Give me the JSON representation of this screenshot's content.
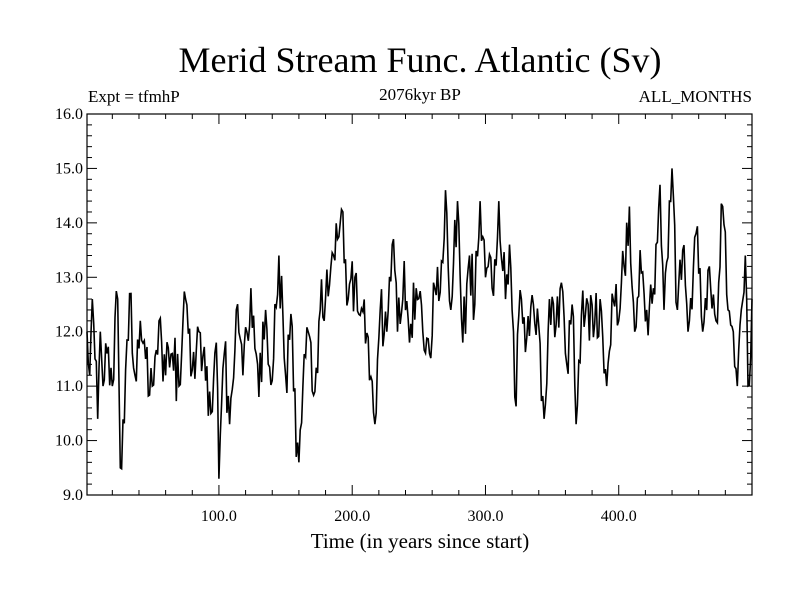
{
  "chart_data": {
    "type": "line",
    "title": "Merid Stream Func. Atlantic (Sv)",
    "subtitle": "2076kyr BP",
    "left_label": "Expt = tfmhP",
    "right_label": "ALL_MONTHS",
    "xlabel": "Time (in years since start)",
    "ylabel": "",
    "xlim": [
      1,
      500
    ],
    "ylim": [
      9.0,
      16.0
    ],
    "x_ticks": [
      100,
      200,
      300,
      400
    ],
    "x_tick_labels": [
      "100.0",
      "200.0",
      "300.0",
      "400.0"
    ],
    "y_ticks": [
      9,
      10,
      11,
      12,
      13,
      14,
      15,
      16
    ],
    "y_tick_labels": [
      "9.0",
      "10.0",
      "11.0",
      "12.0",
      "13.0",
      "14.0",
      "15.0",
      "16.0"
    ],
    "grid": false,
    "legend": "none",
    "series": [
      {
        "name": "Merid Stream Func. Atlantic",
        "color": "#000000",
        "x_start": 1,
        "x_step": 1,
        "anchors": [
          [
            1,
            12.0
          ],
          [
            3,
            11.2
          ],
          [
            5,
            12.6
          ],
          [
            7,
            11.5
          ],
          [
            9,
            10.4
          ],
          [
            11,
            12.0
          ],
          [
            13,
            11.0
          ],
          [
            16,
            11.6
          ],
          [
            20,
            11.0
          ],
          [
            24,
            12.6
          ],
          [
            26,
            9.5
          ],
          [
            30,
            11.3
          ],
          [
            33,
            12.7
          ],
          [
            37,
            11.2
          ],
          [
            41,
            12.2
          ],
          [
            45,
            11.5
          ],
          [
            50,
            11.0
          ],
          [
            55,
            12.2
          ],
          [
            60,
            11.2
          ],
          [
            65,
            11.6
          ],
          [
            70,
            11.0
          ],
          [
            75,
            12.6
          ],
          [
            80,
            11.3
          ],
          [
            85,
            12.0
          ],
          [
            90,
            11.1
          ],
          [
            94,
            10.5
          ],
          [
            98,
            11.8
          ],
          [
            100,
            9.3
          ],
          [
            104,
            11.6
          ],
          [
            108,
            10.3
          ],
          [
            113,
            12.4
          ],
          [
            118,
            11.2
          ],
          [
            124,
            12.8
          ],
          [
            130,
            10.8
          ],
          [
            135,
            12.4
          ],
          [
            140,
            11.1
          ],
          [
            145,
            13.4
          ],
          [
            150,
            11.2
          ],
          [
            155,
            12.1
          ],
          [
            158,
            9.7
          ],
          [
            160,
            9.6
          ],
          [
            163,
            11.0
          ],
          [
            167,
            12.0
          ],
          [
            172,
            10.9
          ],
          [
            176,
            12.4
          ],
          [
            180,
            12.6
          ],
          [
            184,
            13.2
          ],
          [
            189,
            13.7
          ],
          [
            193,
            14.2
          ],
          [
            197,
            12.6
          ],
          [
            202,
            13.0
          ],
          [
            206,
            12.3
          ],
          [
            212,
            11.9
          ],
          [
            217,
            10.3
          ],
          [
            221,
            12.4
          ],
          [
            226,
            12.0
          ],
          [
            230,
            13.6
          ],
          [
            234,
            12.0
          ],
          [
            239,
            13.3
          ],
          [
            243,
            11.8
          ],
          [
            248,
            12.8
          ],
          [
            253,
            12.0
          ],
          [
            258,
            11.6
          ],
          [
            262,
            12.8
          ],
          [
            267,
            13.3
          ],
          [
            270,
            14.6
          ],
          [
            274,
            12.4
          ],
          [
            279,
            14.4
          ],
          [
            283,
            11.8
          ],
          [
            288,
            13.4
          ],
          [
            292,
            12.5
          ],
          [
            296,
            14.4
          ],
          [
            300,
            13.0
          ],
          [
            305,
            12.8
          ],
          [
            310,
            14.4
          ],
          [
            315,
            12.6
          ],
          [
            318,
            13.6
          ],
          [
            322,
            10.8
          ],
          [
            327,
            12.6
          ],
          [
            331,
            11.9
          ],
          [
            336,
            12.5
          ],
          [
            340,
            12.1
          ],
          [
            344,
            10.4
          ],
          [
            348,
            12.6
          ],
          [
            352,
            11.9
          ],
          [
            357,
            12.9
          ],
          [
            361,
            11.4
          ],
          [
            365,
            12.5
          ],
          [
            368,
            10.3
          ],
          [
            372,
            12.3
          ],
          [
            377,
            12.5
          ],
          [
            381,
            11.9
          ],
          [
            386,
            12.6
          ],
          [
            391,
            11.0
          ],
          [
            395,
            12.7
          ],
          [
            400,
            12.2
          ],
          [
            404,
            13.2
          ],
          [
            408,
            14.3
          ],
          [
            412,
            12.0
          ],
          [
            416,
            13.5
          ],
          [
            421,
            12.4
          ],
          [
            426,
            12.8
          ],
          [
            431,
            14.7
          ],
          [
            434,
            12.4
          ],
          [
            438,
            14.4
          ],
          [
            440,
            15.0
          ],
          [
            444,
            12.4
          ],
          [
            448,
            13.5
          ],
          [
            453,
            12.2
          ],
          [
            458,
            13.8
          ],
          [
            463,
            12.0
          ],
          [
            468,
            13.2
          ],
          [
            473,
            12.2
          ],
          [
            478,
            14.3
          ],
          [
            482,
            12.4
          ],
          [
            486,
            12.0
          ],
          [
            489,
            11.0
          ],
          [
            492,
            12.4
          ],
          [
            495,
            13.4
          ],
          [
            497,
            11.0
          ],
          [
            500,
            12.6
          ]
        ]
      }
    ]
  }
}
